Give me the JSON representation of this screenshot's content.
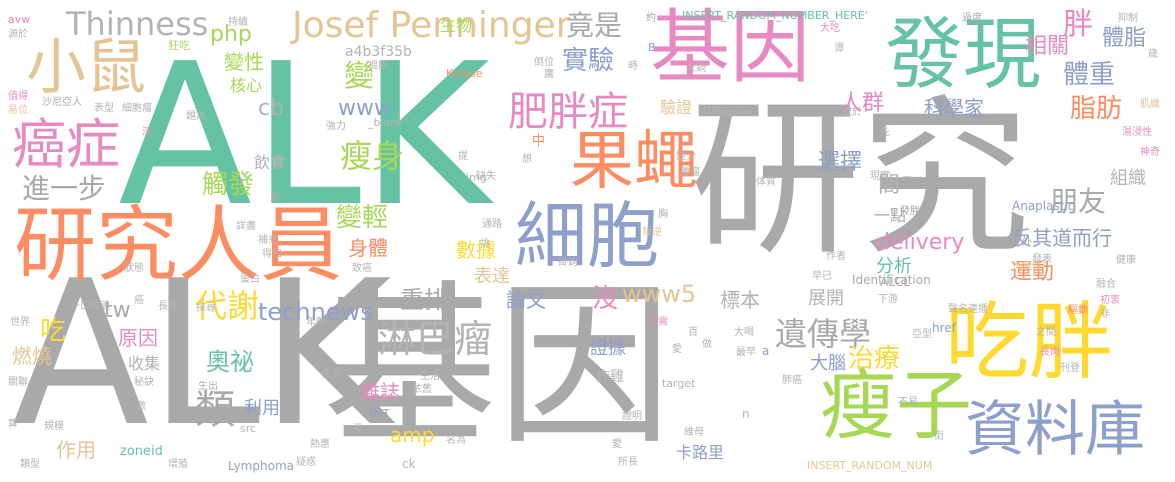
{
  "palette": {
    "gray": "#a9a9a9",
    "teal": "#66c2a5",
    "orange": "#fc8d62",
    "blue": "#8da0cb",
    "pink": "#e78ac3",
    "green": "#a6d854",
    "yellow": "#ffd92f",
    "tan": "#e5c494",
    "lightgray": "#b3b3b3"
  },
  "words": [
    {
      "text": "ALK",
      "color": "#66c2a5"
    },
    {
      "text": "ALK",
      "color": "#a9a9a9"
    },
    {
      "text": "研究",
      "color": "#a9a9a9"
    },
    {
      "text": "基因",
      "color": "#a9a9a9"
    },
    {
      "text": "研究人員",
      "color": "#fc8d62"
    },
    {
      "text": "基因",
      "color": "#e78ac3"
    },
    {
      "text": "發現",
      "color": "#66c2a5"
    },
    {
      "text": "細胞",
      "color": "#8da0cb"
    },
    {
      "text": "果蠅",
      "color": "#fc8d62"
    },
    {
      "text": "吃胖",
      "color": "#ffd92f"
    },
    {
      "text": "瘦子",
      "color": "#a6d854"
    },
    {
      "text": "資料庫",
      "color": "#8da0cb"
    },
    {
      "text": "小鼠",
      "color": "#e5c494"
    },
    {
      "text": "癌症",
      "color": "#e78ac3"
    },
    {
      "text": "Josef Penninger",
      "color": "#e5c494"
    },
    {
      "text": "Thinness",
      "color": "#b3b3b3"
    },
    {
      "text": "肥胖症",
      "color": "#e78ac3"
    },
    {
      "text": "瘦身",
      "color": "#a6d854"
    },
    {
      "text": "淋巴瘤",
      "color": "#b3b3b3"
    },
    {
      "text": "代謝",
      "color": "#ffd92f"
    },
    {
      "text": "遺傳學",
      "color": "#a9a9a9"
    },
    {
      "text": "technews",
      "color": "#8da0cb"
    },
    {
      "text": "進一步",
      "color": "#a9a9a9"
    },
    {
      "text": "實驗",
      "color": "#8da0cb"
    },
    {
      "text": "竟是",
      "color": "#a9a9a9"
    },
    {
      "text": "胖",
      "color": "#e78ac3"
    },
    {
      "text": "體脂",
      "color": "#8da0cb"
    },
    {
      "text": "體重",
      "color": "#8da0cb"
    },
    {
      "text": "脂肪",
      "color": "#fc8d62"
    },
    {
      "text": "相關",
      "color": "#e78ac3"
    },
    {
      "text": "人群",
      "color": "#e78ac3"
    },
    {
      "text": "科學家",
      "color": "#8da0cb"
    },
    {
      "text": "變性",
      "color": "#a6d854"
    },
    {
      "text": "php",
      "color": "#a6d854"
    },
    {
      "text": "核心",
      "color": "#a6d854"
    },
    {
      "text": "變",
      "color": "#a6d854"
    },
    {
      "text": "www",
      "color": "#8da0cb"
    },
    {
      "text": "cb",
      "color": "#b3b3b3"
    },
    {
      "text": "飲食",
      "color": "#b3b3b3"
    },
    {
      "text": "觸發",
      "color": "#a6d854"
    },
    {
      "text": "變輕",
      "color": "#a6d854"
    },
    {
      "text": "delivery",
      "color": "#e78ac3"
    },
    {
      "text": "身體",
      "color": "#fc8d62"
    },
    {
      "text": "www5",
      "color": "#e5c494"
    },
    {
      "text": "朋友",
      "color": "#a9a9a9"
    },
    {
      "text": "反其道而行",
      "color": "#8da0cb"
    },
    {
      "text": "選擇",
      "color": "#8da0cb"
    },
    {
      "text": "組織",
      "color": "#b3b3b3"
    },
    {
      "text": "運動",
      "color": "#fc8d62"
    },
    {
      "text": "分析",
      "color": "#66c2a5"
    },
    {
      "text": "表達",
      "color": "#e5c494"
    },
    {
      "text": "論文",
      "color": "#8da0cb"
    },
    {
      "text": "數據",
      "color": "#ffd92f"
    },
    {
      "text": "沒",
      "color": "#e78ac3"
    },
    {
      "text": "標本",
      "color": "#b3b3b3"
    },
    {
      "text": "展開",
      "color": "#b3b3b3"
    },
    {
      "text": "重排",
      "color": "#a9a9a9"
    },
    {
      "text": "原因",
      "color": "#e78ac3"
    },
    {
      "text": "收集",
      "color": "#b3b3b3"
    },
    {
      "text": "奧祕",
      "color": "#66c2a5"
    },
    {
      "text": "雜誌",
      "color": "#e78ac3"
    },
    {
      "text": "amp",
      "color": "#ffd92f"
    },
    {
      "text": "類",
      "color": "#a9a9a9"
    },
    {
      "text": "利用",
      "color": "#8da0cb"
    },
    {
      "text": "作用",
      "color": "#e5c494"
    },
    {
      "text": "治療",
      "color": "#ffd92f"
    },
    {
      "text": "大腦",
      "color": "#8da0cb"
    },
    {
      "text": "證據",
      "color": "#8da0cb"
    },
    {
      "text": "炸雞",
      "color": "#b3b3b3"
    },
    {
      "text": "卡路里",
      "color": "#8da0cb"
    },
    {
      "text": "吃",
      "color": "#ffd92f"
    },
    {
      "text": "燃燒",
      "color": "#e5c494"
    },
    {
      "text": "tw",
      "color": "#a9a9a9"
    },
    {
      "text": "間",
      "color": "#b3b3b3"
    },
    {
      "text": "生物",
      "color": "#a6d854"
    },
    {
      "text": "a4b3f35b",
      "color": "#b3b3b3"
    },
    {
      "text": "驗證",
      "color": "#e5c494"
    },
    {
      "text": "一點",
      "color": "#a9a9a9"
    },
    {
      "text": "Anaplastic",
      "color": "#8da0cb"
    },
    {
      "text": "ALCL",
      "color": "#a9a9a9"
    },
    {
      "text": "Identification",
      "color": "#a9a9a9"
    },
    {
      "text": "INSERT_RANDOM_NUMBER_HERE'",
      "color": "#66c2a5"
    },
    {
      "text": "INSERT_RANDOM_NUM",
      "color": "#e5c494"
    },
    {
      "text": "Lymphoma",
      "color": "#8da0cb"
    },
    {
      "text": "zoneid",
      "color": "#66c2a5"
    },
    {
      "text": "Kinase",
      "color": "#fc8d62"
    },
    {
      "text": "_blank'",
      "color": "#b3b3b3"
    },
    {
      "text": "target",
      "color": "#b3b3b3"
    },
    {
      "text": "href",
      "color": "#8da0cb"
    },
    {
      "text": "img",
      "color": "#b3b3b3"
    },
    {
      "text": "src",
      "color": "#b3b3b3"
    },
    {
      "text": "IMT",
      "color": "#8da0cb"
    },
    {
      "text": "ck",
      "color": "#b3b3b3"
    },
    {
      "text": "n",
      "color": "#b3b3b3"
    },
    {
      "text": "a",
      "color": "#8da0cb"
    },
    {
      "text": "B",
      "color": "#8da0cb"
    },
    {
      "text": "avw",
      "color": "#e78ac3"
    },
    {
      "text": "源於",
      "color": "#b3b3b3"
    },
    {
      "text": "狂吃",
      "color": "#a6d854"
    },
    {
      "text": "持續",
      "color": "#b3b3b3"
    },
    {
      "text": "揭開",
      "color": "#b3b3b3"
    },
    {
      "text": "約",
      "color": "#a9a9a9"
    },
    {
      "text": "過度",
      "color": "#a9a9a9"
    },
    {
      "text": "抑制",
      "color": "#b3b3b3"
    },
    {
      "text": "值得",
      "color": "#e78ac3"
    },
    {
      "text": "易位",
      "color": "#e5c494"
    },
    {
      "text": "沙尼亞人",
      "color": "#a9a9a9"
    },
    {
      "text": "表型",
      "color": "#b3b3b3"
    },
    {
      "text": "細胞瘤",
      "color": "#b3b3b3"
    },
    {
      "text": "題為",
      "color": "#b3b3b3"
    },
    {
      "text": "強力",
      "color": "#b3b3b3"
    },
    {
      "text": "中",
      "color": "#fc8d62"
    },
    {
      "text": "想",
      "color": "#b3b3b3"
    },
    {
      "text": "倒位",
      "color": "#b3b3b3"
    },
    {
      "text": "時",
      "color": "#b3b3b3"
    },
    {
      "text": "火鍋",
      "color": "#b3b3b3"
    },
    {
      "text": "大吃",
      "color": "#e78ac3"
    },
    {
      "text": "肌纖",
      "color": "#e5c494"
    },
    {
      "text": "濕浸性",
      "color": "#e78ac3"
    },
    {
      "text": "神奇",
      "color": "#e78ac3"
    },
    {
      "text": "深",
      "color": "#e78ac3"
    },
    {
      "text": "說",
      "color": "#b3b3b3"
    },
    {
      "text": "提",
      "color": "#b3b3b3"
    },
    {
      "text": "缺失",
      "color": "#b3b3b3"
    },
    {
      "text": "變少",
      "color": "#b3b3b3"
    },
    {
      "text": "腫瘤",
      "color": "#b3b3b3"
    },
    {
      "text": "研究所",
      "color": "#b3b3b3"
    },
    {
      "text": "處於",
      "color": "#b3b3b3"
    },
    {
      "text": "先",
      "color": "#b3b3b3"
    },
    {
      "text": "現實",
      "color": "#b3b3b3"
    },
    {
      "text": "蛋糕",
      "color": "#a9a9a9"
    },
    {
      "text": "發胖",
      "color": "#a9a9a9"
    },
    {
      "text": "之外",
      "color": "#a9a9a9"
    },
    {
      "text": "炎症性",
      "color": "#e5c494"
    },
    {
      "text": "健康",
      "color": "#b3b3b3"
    },
    {
      "text": "發表",
      "color": "#b3b3b3"
    },
    {
      "text": "融合",
      "color": "#b3b3b3"
    },
    {
      "text": "作者",
      "color": "#b3b3b3"
    },
    {
      "text": "早已",
      "color": "#b3b3b3"
    },
    {
      "text": "聲名遠播",
      "color": "#b3b3b3"
    },
    {
      "text": "驅動",
      "color": "#fc8d62"
    },
    {
      "text": "初衷",
      "color": "#e78ac3"
    },
    {
      "text": "下游",
      "color": "#b3b3b3"
    },
    {
      "text": "非",
      "color": "#b3b3b3"
    },
    {
      "text": "之間",
      "color": "#b3b3b3"
    },
    {
      "text": "長肉",
      "color": "#e78ac3"
    },
    {
      "text": "刊登",
      "color": "#b3b3b3"
    },
    {
      "text": "詳盡",
      "color": "#b3b3b3"
    },
    {
      "text": "補充",
      "color": "#b3b3b3"
    },
    {
      "text": "得知",
      "color": "#b3b3b3"
    },
    {
      "text": "通路",
      "color": "#b3b3b3"
    },
    {
      "text": "叛逆",
      "color": "#e5c494"
    },
    {
      "text": "挑",
      "color": "#b3b3b3"
    },
    {
      "text": "掛鉤",
      "color": "#b3b3b3"
    },
    {
      "text": "狀態",
      "color": "#b3b3b3"
    },
    {
      "text": "蛋白",
      "color": "#b3b3b3"
    },
    {
      "text": "致癌",
      "color": "#b3b3b3"
    },
    {
      "text": "不需",
      "color": "#e78ac3"
    },
    {
      "text": "大喝",
      "color": "#b3b3b3"
    },
    {
      "text": "亞型",
      "color": "#b3b3b3"
    },
    {
      "text": "一口",
      "color": "#b3b3b3"
    },
    {
      "text": "靈魂",
      "color": "#b3b3b3"
    },
    {
      "text": "癌",
      "color": "#b3b3b3"
    },
    {
      "text": "長胖",
      "color": "#b3b3b3"
    },
    {
      "text": "探尋",
      "color": "#b3b3b3"
    },
    {
      "text": "世界",
      "color": "#b3b3b3"
    },
    {
      "text": "年齡",
      "color": "#b3b3b3"
    },
    {
      "text": "百",
      "color": "#b3b3b3"
    },
    {
      "text": "愛",
      "color": "#b3b3b3"
    },
    {
      "text": "做",
      "color": "#b3b3b3"
    },
    {
      "text": "最早",
      "color": "#b3b3b3"
    },
    {
      "text": "關聯",
      "color": "#b3b3b3"
    },
    {
      "text": "秘訣",
      "color": "#b3b3b3"
    },
    {
      "text": "生命",
      "color": "#b3b3b3"
    },
    {
      "text": "依舊",
      "color": "#b3b3b3"
    },
    {
      "text": "生活",
      "color": "#b3b3b3"
    },
    {
      "text": "肺癌",
      "color": "#b3b3b3"
    },
    {
      "text": "生出",
      "color": "#b3b3b3"
    },
    {
      "text": "激",
      "color": "#b3b3b3"
    },
    {
      "text": "算",
      "color": "#b3b3b3"
    },
    {
      "text": "規模",
      "color": "#b3b3b3"
    },
    {
      "text": "裡",
      "color": "#b3b3b3"
    },
    {
      "text": "名為",
      "color": "#b3b3b3"
    },
    {
      "text": "不易",
      "color": "#b3b3b3"
    },
    {
      "text": "類型",
      "color": "#b3b3b3"
    },
    {
      "text": "增殖",
      "color": "#b3b3b3"
    },
    {
      "text": "熱惠",
      "color": "#b3b3b3"
    },
    {
      "text": "疑惑",
      "color": "#b3b3b3"
    },
    {
      "text": "證明",
      "color": "#b3b3b3"
    },
    {
      "text": "維母",
      "color": "#b3b3b3"
    },
    {
      "text": "愛",
      "color": "#b3b3b3"
    },
    {
      "text": "所長",
      "color": "#b3b3b3"
    },
    {
      "text": "街",
      "color": "#b3b3b3"
    },
    {
      "text": "科學",
      "color": "#b3b3b3"
    },
    {
      "text": "歲",
      "color": "#b3b3b3"
    },
    {
      "text": "胸",
      "color": "#b3b3b3"
    },
    {
      "text": "鷹",
      "color": "#b3b3b3"
    },
    {
      "text": "前",
      "color": "#b3b3b3"
    },
    {
      "text": "谭",
      "color": "#b3b3b3"
    },
    {
      "text": "体質",
      "color": "#b3b3b3"
    }
  ]
}
